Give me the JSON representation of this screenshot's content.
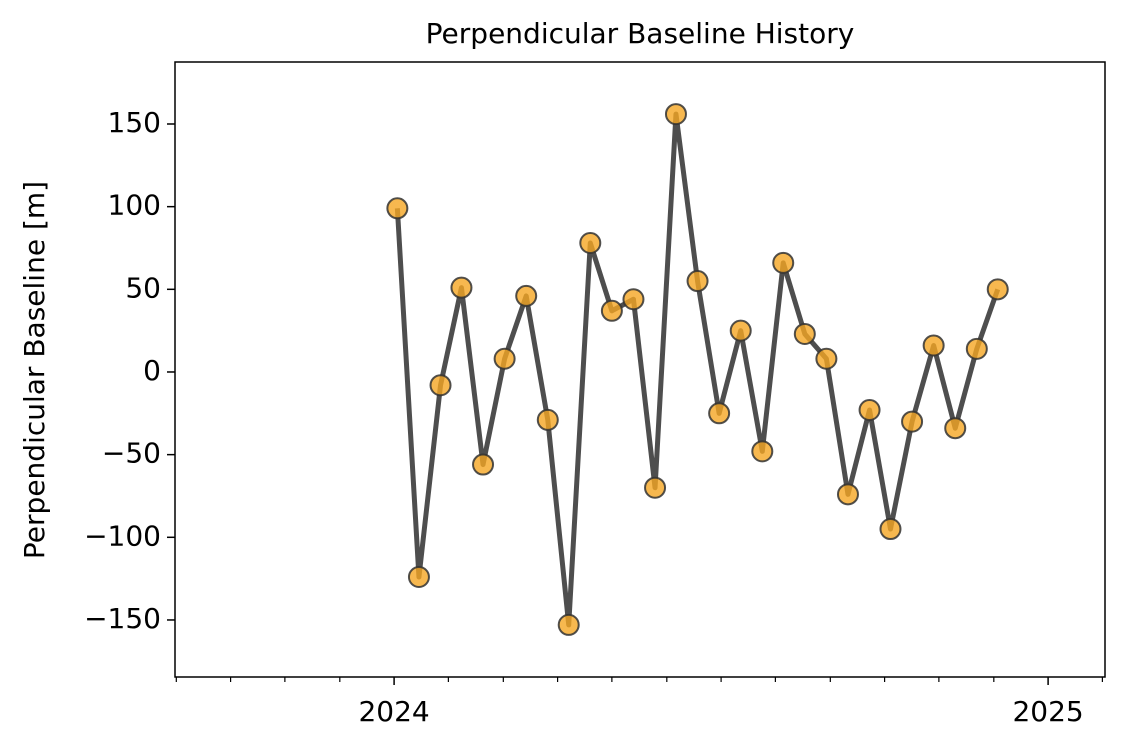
{
  "chart_data": {
    "type": "line",
    "title": "Perpendicular Baseline History",
    "y_label": "Perpendicular Baseline [m]",
    "x": [
      2024.005,
      2024.038,
      2024.071,
      2024.103,
      2024.136,
      2024.169,
      2024.202,
      2024.235,
      2024.267,
      2024.3,
      2024.333,
      2024.366,
      2024.399,
      2024.431,
      2024.464,
      2024.497,
      2024.53,
      2024.563,
      2024.595,
      2024.628,
      2024.661,
      2024.694,
      2024.727,
      2024.759,
      2024.792,
      2024.825,
      2024.858,
      2024.891,
      2024.923
    ],
    "series": [
      {
        "color": "#f5a623",
        "line_color": "#444444",
        "values": [
          99,
          -124,
          -8,
          51,
          -56,
          8,
          46,
          -29,
          -153,
          78,
          37,
          44,
          -70,
          156,
          55,
          -25,
          25,
          -48,
          66,
          23,
          8,
          -74,
          -23,
          -95,
          -30,
          16,
          -34,
          14,
          50
        ]
      }
    ],
    "xlim": [
      2023.665,
      2025.087
    ],
    "ylim": [
      -184.5,
      187.5
    ],
    "xticks": [
      2024,
      2025
    ],
    "xminorticks": [
      2023.667,
      2023.75,
      2023.833,
      2023.917,
      2024.083,
      2024.167,
      2024.25,
      2024.333,
      2024.417,
      2024.5,
      2024.583,
      2024.667,
      2024.75,
      2024.833,
      2024.917,
      2025.083
    ],
    "yticks": [
      150,
      100,
      50,
      0,
      {
        "value": -50,
        "label": "−50"
      },
      {
        "value": -100,
        "label": "−100"
      },
      {
        "value": -150,
        "label": "−150"
      }
    ],
    "grid": false
  }
}
